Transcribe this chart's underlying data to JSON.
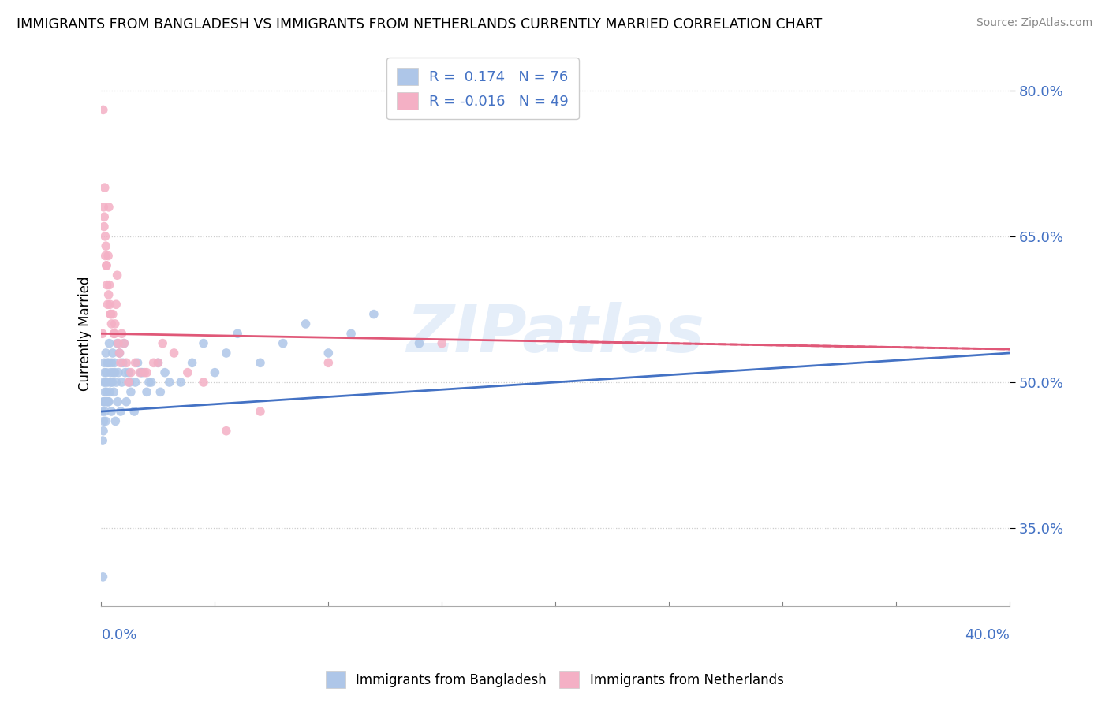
{
  "title": "IMMIGRANTS FROM BANGLADESH VS IMMIGRANTS FROM NETHERLANDS CURRENTLY MARRIED CORRELATION CHART",
  "source": "Source: ZipAtlas.com",
  "xlim": [
    0.0,
    40.0
  ],
  "ylim": [
    27.0,
    83.0
  ],
  "yticks": [
    35.0,
    50.0,
    65.0,
    80.0
  ],
  "ytick_labels": [
    "35.0%",
    "50.0%",
    "65.0%",
    "80.0%"
  ],
  "bangladesh_color": "#aec6e8",
  "bangladesh_line_color": "#4472c4",
  "netherlands_color": "#f4b0c5",
  "netherlands_line_color": "#e05878",
  "watermark": "ZIPatlas",
  "R_bangladesh": 0.174,
  "N_bangladesh": 76,
  "R_netherlands": -0.016,
  "N_netherlands": 49,
  "bangladesh_x": [
    0.05,
    0.07,
    0.08,
    0.1,
    0.11,
    0.12,
    0.13,
    0.14,
    0.15,
    0.16,
    0.17,
    0.18,
    0.2,
    0.22,
    0.23,
    0.25,
    0.27,
    0.28,
    0.3,
    0.32,
    0.35,
    0.38,
    0.4,
    0.42,
    0.45,
    0.48,
    0.5,
    0.52,
    0.55,
    0.58,
    0.6,
    0.65,
    0.7,
    0.75,
    0.8,
    0.85,
    0.9,
    0.95,
    1.0,
    1.1,
    1.2,
    1.3,
    1.5,
    1.6,
    1.8,
    2.0,
    2.2,
    2.5,
    2.8,
    3.0,
    3.5,
    4.0,
    4.5,
    5.0,
    5.5,
    6.0,
    7.0,
    8.0,
    9.0,
    10.0,
    11.0,
    12.0,
    14.0,
    0.06,
    0.09,
    0.19,
    0.33,
    0.44,
    0.62,
    0.72,
    1.05,
    1.25,
    1.45,
    1.75,
    2.1,
    2.6
  ],
  "bangladesh_y": [
    47,
    30,
    48,
    46,
    50,
    48,
    52,
    51,
    47,
    49,
    48,
    50,
    53,
    51,
    49,
    48,
    52,
    50,
    48,
    52,
    54,
    49,
    51,
    50,
    52,
    50,
    53,
    51,
    49,
    52,
    51,
    50,
    54,
    51,
    53,
    47,
    50,
    52,
    54,
    48,
    51,
    49,
    50,
    52,
    51,
    49,
    50,
    52,
    51,
    50,
    50,
    52,
    54,
    51,
    53,
    55,
    52,
    54,
    56,
    53,
    55,
    57,
    54,
    44,
    45,
    46,
    48,
    47,
    46,
    48,
    51,
    50,
    47,
    51,
    50,
    49
  ],
  "netherlands_x": [
    0.05,
    0.08,
    0.1,
    0.12,
    0.15,
    0.17,
    0.2,
    0.22,
    0.25,
    0.28,
    0.3,
    0.33,
    0.35,
    0.38,
    0.4,
    0.45,
    0.5,
    0.55,
    0.6,
    0.65,
    0.7,
    0.75,
    0.8,
    0.9,
    1.0,
    1.1,
    1.3,
    1.5,
    1.7,
    2.0,
    2.3,
    2.7,
    3.2,
    3.8,
    4.5,
    5.5,
    7.0,
    10.0,
    15.0,
    0.13,
    0.18,
    0.23,
    0.32,
    0.42,
    0.58,
    0.85,
    1.2,
    1.9,
    2.5
  ],
  "netherlands_y": [
    55,
    78,
    68,
    66,
    70,
    65,
    64,
    62,
    60,
    58,
    63,
    68,
    60,
    58,
    57,
    56,
    57,
    55,
    56,
    58,
    61,
    54,
    53,
    55,
    54,
    52,
    51,
    52,
    51,
    51,
    52,
    54,
    53,
    51,
    50,
    45,
    47,
    52,
    54,
    67,
    63,
    62,
    59,
    57,
    55,
    52,
    50,
    51,
    52
  ]
}
